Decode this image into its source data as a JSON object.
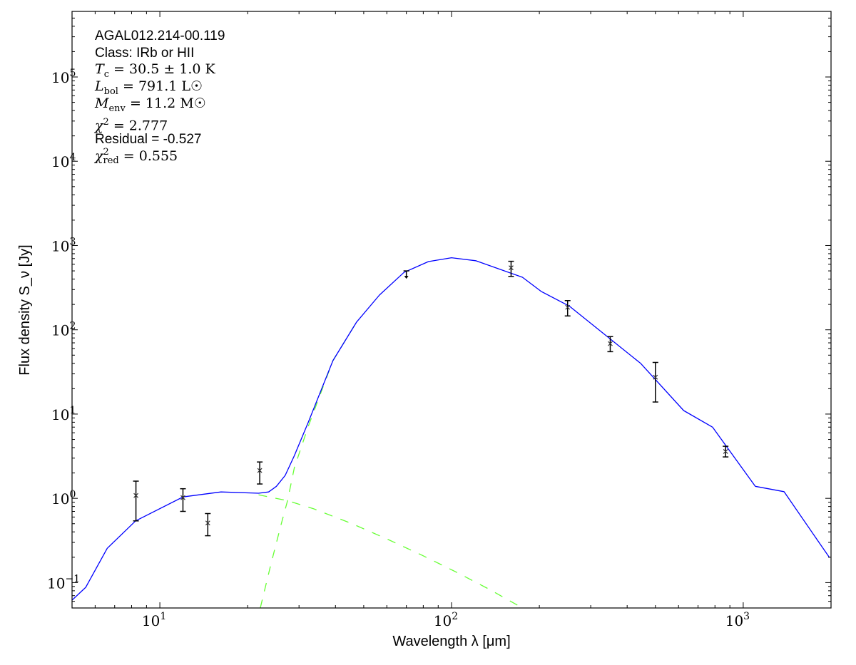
{
  "chart_data": {
    "type": "line",
    "title": "",
    "xlabel": "Wavelength λ [μm]",
    "ylabel": "Flux density S_ν [Jy]",
    "xscale": "log",
    "yscale": "log",
    "xlim": [
      5,
      2000
    ],
    "ylim": [
      0.05,
      600000
    ],
    "grid": false,
    "x_ticks": [
      {
        "value": 10,
        "base": "10",
        "exp": "1"
      },
      {
        "value": 100,
        "base": "10",
        "exp": "2"
      },
      {
        "value": 1000,
        "base": "10",
        "exp": "3"
      }
    ],
    "y_ticks": [
      {
        "value": 0.1,
        "base": "10",
        "exp": "−1"
      },
      {
        "value": 1,
        "base": "10",
        "exp": "0"
      },
      {
        "value": 10,
        "base": "10",
        "exp": "1"
      },
      {
        "value": 100,
        "base": "10",
        "exp": "2"
      },
      {
        "value": 1000,
        "base": "10",
        "exp": "3"
      },
      {
        "value": 10000,
        "base": "10",
        "exp": "4"
      },
      {
        "value": 100000,
        "base": "10",
        "exp": "5"
      }
    ],
    "measurements": [
      {
        "x": 8.28,
        "y": 1.08,
        "err_hi": 1.6,
        "err_lo": 0.54,
        "upper_limit": false
      },
      {
        "x": 12.0,
        "y": 1.02,
        "err_hi": 1.3,
        "err_lo": 0.7,
        "upper_limit": false
      },
      {
        "x": 14.6,
        "y": 0.51,
        "err_hi": 0.66,
        "err_lo": 0.36,
        "upper_limit": false
      },
      {
        "x": 22.0,
        "y": 2.14,
        "err_hi": 2.7,
        "err_lo": 1.48,
        "upper_limit": false
      },
      {
        "x": 70,
        "y": 500,
        "upper_limit": true
      },
      {
        "x": 160,
        "y": 545,
        "err_hi": 650,
        "err_lo": 430,
        "upper_limit": false
      },
      {
        "x": 250,
        "y": 185,
        "err_hi": 222,
        "err_lo": 146,
        "upper_limit": false
      },
      {
        "x": 350,
        "y": 68.5,
        "err_hi": 83,
        "err_lo": 55,
        "upper_limit": false
      },
      {
        "x": 500,
        "y": 27.4,
        "err_hi": 41,
        "err_lo": 13.9,
        "upper_limit": false
      },
      {
        "x": 870,
        "y": 3.6,
        "err_hi": 4.15,
        "err_lo": 3.1,
        "upper_limit": false
      }
    ],
    "series": [
      {
        "name": "total model",
        "color": "#0000ff",
        "style": "solid",
        "points": [
          [
            5,
            0.062
          ],
          [
            5.57,
            0.088
          ],
          [
            6.6,
            0.255
          ],
          [
            8.26,
            0.54
          ],
          [
            12.0,
            1.04
          ],
          [
            16.2,
            1.19
          ],
          [
            21.8,
            1.15
          ],
          [
            23.6,
            1.19
          ],
          [
            25.1,
            1.39
          ],
          [
            26.9,
            1.87
          ],
          [
            28.9,
            3.2
          ],
          [
            29.6,
            3.9
          ],
          [
            32.3,
            8.05
          ],
          [
            39.2,
            43
          ],
          [
            47.2,
            123
          ],
          [
            56.6,
            258
          ],
          [
            68.7,
            480
          ],
          [
            83.3,
            645
          ],
          [
            100,
            716
          ],
          [
            121,
            660
          ],
          [
            175,
            420
          ],
          [
            203,
            285
          ],
          [
            254,
            190
          ],
          [
            445,
            40
          ],
          [
            625,
            11
          ],
          [
            785,
            7
          ],
          [
            1100,
            1.39
          ],
          [
            1380,
            1.2
          ],
          [
            1975,
            0.198
          ]
        ]
      },
      {
        "name": "hot component",
        "color": "#66ff33",
        "style": "dashed",
        "points": [
          [
            21.8,
            1.1
          ],
          [
            27.4,
            0.94
          ],
          [
            33.7,
            0.75
          ],
          [
            45.3,
            0.505
          ],
          [
            60,
            0.33
          ],
          [
            79.5,
            0.21
          ],
          [
            103.5,
            0.134
          ],
          [
            135,
            0.083
          ],
          [
            175,
            0.05
          ]
        ]
      },
      {
        "name": "cold component",
        "color": "#66ff33",
        "style": "dashed",
        "points": [
          [
            22.1,
            0.05
          ],
          [
            24,
            0.163
          ],
          [
            26,
            0.48
          ],
          [
            27.4,
            0.94
          ],
          [
            28.9,
            2.3
          ],
          [
            32.3,
            7.2
          ],
          [
            39.2,
            43
          ],
          [
            47.2,
            123
          ]
        ]
      }
    ],
    "annotations": {
      "source": "AGAL012.214-00.119",
      "class_line": "Class: IRb or HII",
      "tc": {
        "sym": "T",
        "sub": "c",
        "value": "= 30.5 ± 1.0 K"
      },
      "lbol": {
        "sym": "L",
        "sub": "bol",
        "value": "= 791.1 L☉"
      },
      "menv": {
        "sym": "M",
        "sub": "env",
        "value": "= 11.2 M☉"
      },
      "chi2": {
        "sym": "χ",
        "sup": "2",
        "value": "= 2.777"
      },
      "residual": "Residual = -0.527",
      "chi2red": {
        "sym": "χ",
        "sup": "2",
        "sub": "red",
        "value": "= 0.555"
      }
    }
  }
}
